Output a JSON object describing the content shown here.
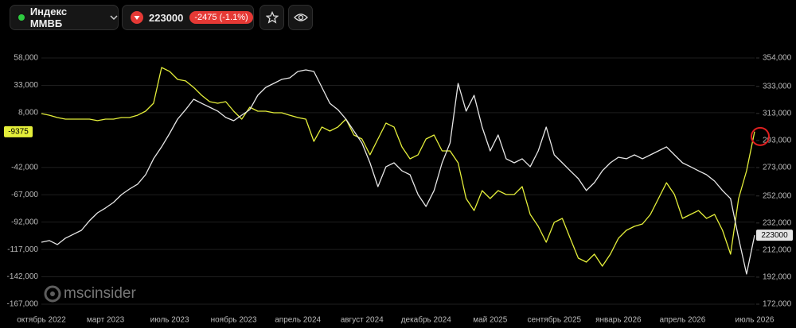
{
  "header": {
    "symbol": "Индекс ММВБ",
    "price": "223000",
    "change": "-2475 (-1.1%)"
  },
  "watermark": "mscinsider",
  "chart_data": {
    "type": "line",
    "categories": [
      "октябрь 2022",
      null,
      null,
      null,
      null,
      null,
      null,
      null,
      "март 2023",
      null,
      null,
      null,
      null,
      null,
      null,
      null,
      "июль 2023",
      null,
      null,
      null,
      null,
      null,
      null,
      null,
      "ноябрь 2023",
      null,
      null,
      null,
      null,
      null,
      null,
      null,
      "апрель 2024",
      null,
      null,
      null,
      null,
      null,
      null,
      null,
      "август 2024",
      null,
      null,
      null,
      null,
      null,
      null,
      null,
      "декабрь 2024",
      null,
      null,
      null,
      null,
      null,
      null,
      null,
      "май 2025",
      null,
      null,
      null,
      null,
      null,
      null,
      null,
      "сентябрь 2025",
      null,
      null,
      null,
      null,
      null,
      null,
      null,
      "январь 2026",
      null,
      null,
      null,
      null,
      null,
      null,
      null,
      "апрель 2026",
      null,
      null,
      null,
      null,
      null,
      null,
      null,
      null,
      "июль 2026"
    ],
    "series": [
      {
        "color": "#e4ee3a",
        "values": [
          7200,
          5700,
          3600,
          2100,
          2100,
          2100,
          2100,
          700,
          2100,
          2100,
          3600,
          3600,
          5700,
          9400,
          16600,
          49300,
          45700,
          38400,
          37000,
          31100,
          23900,
          18100,
          16600,
          18100,
          9400,
          2100,
          13000,
          9400,
          9400,
          7900,
          7900,
          5700,
          3600,
          2100,
          -18200,
          -5100,
          -8800,
          -5100,
          2100,
          -12400,
          -16000,
          -30500,
          -16000,
          -1500,
          -5100,
          -23300,
          -34200,
          -30500,
          -16000,
          -12400,
          -26900,
          -26900,
          -37800,
          -70500,
          -81400,
          -63200,
          -70500,
          -63200,
          -66800,
          -66800,
          -59600,
          -85000,
          -95900,
          -110400,
          -92200,
          -88600,
          -106800,
          -124900,
          -128500,
          -121300,
          -132200,
          -121300,
          -106800,
          -99500,
          -95900,
          -93700,
          -85000,
          -70500,
          -56000,
          -66800,
          -88600,
          -85000,
          -81400,
          -88600,
          -85000,
          -99500,
          -121300,
          -70500,
          -45100,
          -9375
        ]
      },
      {
        "color": "#e6e6e6",
        "axis": "y2",
        "values": [
          217800,
          219000,
          216100,
          220800,
          223700,
          226600,
          233700,
          239500,
          243100,
          247200,
          253000,
          257100,
          260700,
          267700,
          279500,
          288300,
          298200,
          308800,
          315800,
          323500,
          320500,
          317600,
          314700,
          310000,
          307600,
          311700,
          315800,
          326400,
          332300,
          335200,
          338200,
          339300,
          344000,
          345200,
          344000,
          332300,
          320500,
          315800,
          308800,
          300000,
          291200,
          276500,
          258900,
          273600,
          276500,
          270600,
          267700,
          253000,
          244200,
          256000,
          276500,
          291200,
          335200,
          314700,
          326400,
          302900,
          285300,
          297100,
          279500,
          276500,
          279500,
          273600,
          285300,
          302900,
          282400,
          276500,
          270600,
          264800,
          256000,
          261800,
          270600,
          276500,
          280600,
          279500,
          282400,
          279500,
          282400,
          285300,
          288300,
          282400,
          276500,
          273600,
          270600,
          267700,
          263000,
          256000,
          250000,
          220800,
          194300,
          223000
        ]
      }
    ],
    "ylim": [
      -167000,
      58000
    ],
    "yticks": [
      {
        "value": 58000,
        "label": "58,000"
      },
      {
        "value": 33000,
        "label": "33,000"
      },
      {
        "value": 8000,
        "label": "8,000"
      },
      {
        "value": -42000,
        "label": "-42,000"
      },
      {
        "value": -67000,
        "label": "-67,000"
      },
      {
        "value": -92000,
        "label": "-92,000"
      },
      {
        "value": -117000,
        "label": "-117,000"
      },
      {
        "value": -142000,
        "label": "-142,000"
      },
      {
        "value": -167000,
        "label": "-167,000"
      }
    ],
    "y2lim": [
      172000,
      354000
    ],
    "y2ticks": [
      {
        "value": 354000,
        "label": "354,000"
      },
      {
        "value": 333000,
        "label": "333,000"
      },
      {
        "value": 313000,
        "label": "313,000"
      },
      {
        "value": 293000,
        "label": "293,000"
      },
      {
        "value": 273000,
        "label": "273,000"
      },
      {
        "value": 252000,
        "label": "252,000"
      },
      {
        "value": 232000,
        "label": "232,000"
      },
      {
        "value": 212000,
        "label": "212,000"
      },
      {
        "value": 192000,
        "label": "192,000"
      },
      {
        "value": 172000,
        "label": "172,000"
      }
    ],
    "grid": true
  }
}
